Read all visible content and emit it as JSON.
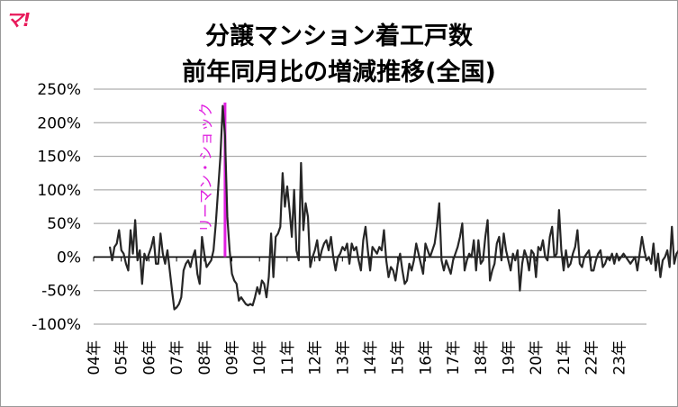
{
  "logo": "マ!",
  "chart_data": {
    "type": "line",
    "title_lines": [
      "分譲マンション着工戸数",
      "前年同月比の増減推移(全国)"
    ],
    "xlabel": "",
    "ylabel": "",
    "ylim": [
      -100,
      250
    ],
    "yticks": [
      250,
      200,
      150,
      100,
      50,
      0,
      -50,
      -100
    ],
    "ytick_labels": [
      "250%",
      "200%",
      "150%",
      "100%",
      "50%",
      "0%",
      "-50%",
      "-100%"
    ],
    "xtick_labels": [
      "04年",
      "05年",
      "06年",
      "07年",
      "08年",
      "09年",
      "10年",
      "11年",
      "12年",
      "13年",
      "14年",
      "15年",
      "16年",
      "17年",
      "18年",
      "19年",
      "20年",
      "21年",
      "22年",
      "23年"
    ],
    "grid": true,
    "line_color": "#262626",
    "annotation": {
      "text": "リーマン・ショック",
      "color": "#e020e0",
      "x_month": 50
    },
    "series": [
      {
        "values": [
          15,
          -5,
          15,
          20,
          40,
          10,
          5,
          -10,
          -20,
          40,
          5,
          55,
          -5,
          10,
          -40,
          5,
          -5,
          5,
          15,
          30,
          -10,
          -10,
          35,
          5,
          -10,
          10,
          -20,
          -50,
          -78,
          -75,
          -70,
          -60,
          -20,
          -10,
          -5,
          -15,
          0,
          10,
          -25,
          -40,
          30,
          5,
          -15,
          -10,
          -5,
          10,
          50,
          100,
          150,
          225,
          180,
          60,
          10,
          -25,
          -35,
          -40,
          -65,
          -60,
          -65,
          -70,
          -72,
          -70,
          -72,
          -60,
          -45,
          -55,
          -35,
          -40,
          -60,
          -30,
          35,
          -30,
          30,
          35,
          45,
          125,
          75,
          105,
          70,
          30,
          100,
          10,
          -5,
          140,
          40,
          80,
          60,
          -15,
          0,
          10,
          25,
          -5,
          10,
          20,
          25,
          10,
          30,
          0,
          -20,
          0,
          5,
          15,
          10,
          20,
          -10,
          20,
          10,
          15,
          -5,
          -20,
          25,
          45,
          10,
          -20,
          15,
          10,
          5,
          15,
          10,
          40,
          -5,
          -30,
          -15,
          -20,
          -35,
          -10,
          5,
          -20,
          -40,
          -35,
          -10,
          -20,
          -5,
          20,
          5,
          -10,
          -25,
          20,
          10,
          0,
          10,
          20,
          45,
          80,
          -5,
          -20,
          -5,
          -15,
          -25,
          -5,
          5,
          15,
          30,
          50,
          -20,
          -5,
          5,
          0,
          25,
          -20,
          25,
          -10,
          -5,
          30,
          55,
          -35,
          -20,
          -10,
          20,
          30,
          -5,
          35,
          10,
          -5,
          -20,
          5,
          -5,
          10,
          -50,
          -10,
          10,
          0,
          -20,
          10,
          5,
          -30,
          15,
          10,
          25,
          0,
          -5,
          30,
          45,
          0,
          5,
          70,
          10,
          -20,
          10,
          -15,
          -10,
          5,
          15,
          40,
          -10,
          -15,
          0,
          5,
          10,
          -20,
          -20,
          -5,
          5,
          10,
          -15,
          -10,
          0,
          -5,
          5,
          -10,
          5,
          -5,
          0,
          5,
          0,
          -5,
          -10,
          -5,
          0,
          -20,
          5,
          30,
          10,
          -5,
          0,
          -10,
          20,
          -20,
          5,
          -30,
          -5,
          0,
          10,
          -15,
          45,
          -10,
          5,
          10,
          -10,
          20,
          -5,
          30,
          5,
          -20,
          10,
          -10,
          70,
          30,
          5,
          -10,
          -5,
          30,
          -45,
          10,
          -20,
          -30,
          -10,
          -5,
          10,
          -5,
          15
        ]
      }
    ]
  }
}
